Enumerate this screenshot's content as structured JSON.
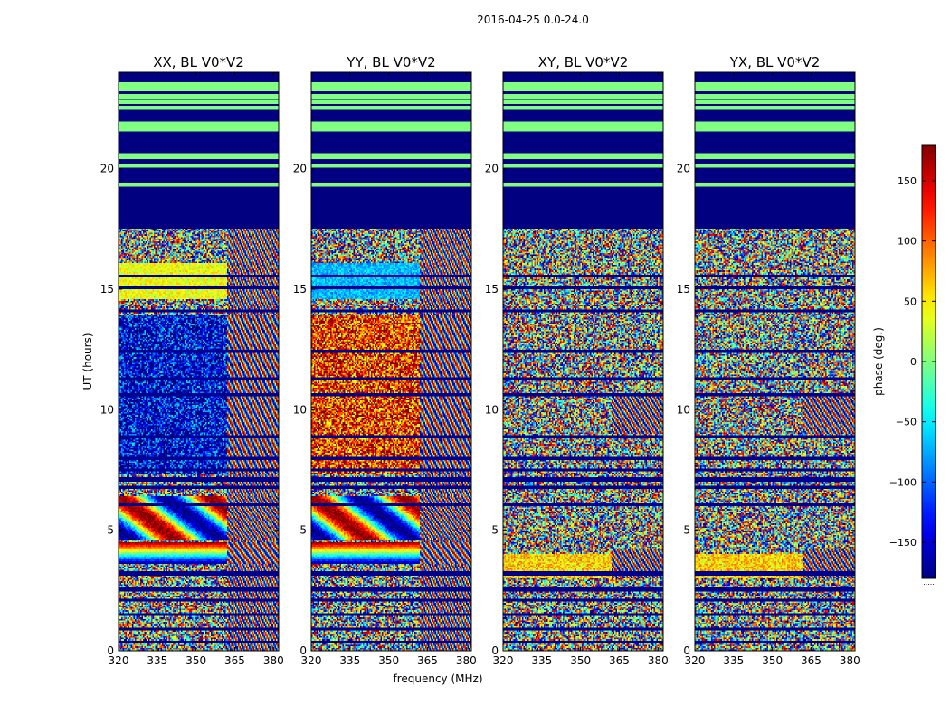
{
  "chart_data": {
    "type": "heatmap",
    "suptitle": "2016-04-25 0.0-24.0",
    "xlabel": "frequency (MHz)",
    "ylabel": "UT (hours)",
    "xlim": [
      320,
      382
    ],
    "ylim": [
      0,
      24
    ],
    "xticks": [
      320,
      335,
      350,
      365,
      380
    ],
    "yticks": [
      0,
      5,
      10,
      15,
      20
    ],
    "panels": [
      {
        "title": "XX, BL V0*V2",
        "pol": "XX"
      },
      {
        "title": "YY, BL V0*V2",
        "pol": "YY"
      },
      {
        "title": "XY, BL V0*V2",
        "pol": "XY"
      },
      {
        "title": "YX, BL V0*V2",
        "pol": "YX"
      }
    ],
    "colorbar": {
      "label": "phase (deg.)",
      "range": [
        -180,
        180
      ],
      "ticks": [
        150,
        100,
        50,
        0,
        -50,
        -100,
        -150
      ],
      "tick_labels": [
        "150",
        "100",
        "50",
        "0",
        "−50",
        "−100",
        "−150"
      ],
      "colormap": "jet",
      "footer": "....."
    },
    "flagged_hours": [
      17.5,
      24.0
    ]
  }
}
